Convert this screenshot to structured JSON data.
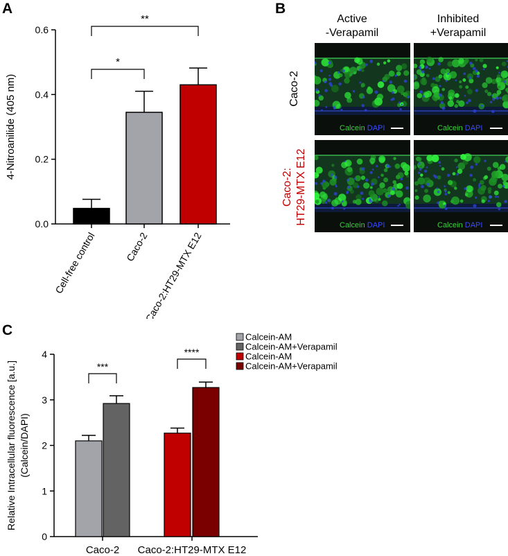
{
  "panels": {
    "a": "A",
    "b": "B",
    "c": "C"
  },
  "colors": {
    "black_bar": "#000000",
    "gray_bar": "#a3a3aa",
    "red_bar": "#c00000",
    "light_gray": "#a3a3aa",
    "dark_gray": "#636363",
    "red": "#c00000",
    "dark_red": "#7a0000",
    "calcein_green": "#39d339",
    "dapi_blue": "#3a4cff"
  },
  "micro": {
    "col_titles": [
      {
        "line1": "Active",
        "line2": "-Verapamil"
      },
      {
        "line1": "Inhibited",
        "line2": "+Verapamil"
      }
    ],
    "row_titles": [
      {
        "line1": "Caco-2",
        "line2": "",
        "color": "#000000"
      },
      {
        "line1": "Caco-2:",
        "line2": "HT29-MTX E12",
        "color": "#c00000"
      }
    ],
    "label_calcein": "Calcein",
    "label_dapi": "DAPI"
  },
  "chart_data": [
    {
      "type": "bar",
      "panel": "A",
      "categories": [
        "Cell-free control",
        "Caco-2",
        "Caco-2:HT29-MTX E12"
      ],
      "values": [
        0.048,
        0.345,
        0.43
      ],
      "errors": [
        0.028,
        0.065,
        0.052
      ],
      "colors": [
        "#000000",
        "#a3a3aa",
        "#c00000"
      ],
      "ylabel": "4-Nitroanilide (405 nm)",
      "ylim": [
        0,
        0.6
      ],
      "yticks": [
        "0.0",
        "0.2",
        "0.4",
        "0.6"
      ],
      "significance": [
        {
          "from": 0,
          "to": 1,
          "label": "*"
        },
        {
          "from": 0,
          "to": 2,
          "label": "**"
        }
      ],
      "grid": false
    },
    {
      "type": "bar",
      "panel": "C",
      "categories": [
        "Caco-2",
        "Caco-2:HT29-MTX E12"
      ],
      "series": [
        {
          "name": "Calcein-AM",
          "group": 0,
          "value": 2.1,
          "error": 0.12,
          "color": "#a3a3aa"
        },
        {
          "name": "Calcein-AM+Verapamil",
          "group": 0,
          "value": 2.92,
          "error": 0.17,
          "color": "#636363"
        },
        {
          "name": "Calcein-AM",
          "group": 1,
          "value": 2.27,
          "error": 0.11,
          "color": "#c00000"
        },
        {
          "name": "Calcein-AM+Verapamil",
          "group": 1,
          "value": 3.27,
          "error": 0.12,
          "color": "#7a0000"
        }
      ],
      "ylabel_line1": "Relative Intracellular fluorescence [a.u.]",
      "ylabel_line2": "(Calcein/DAPI)",
      "ylim": [
        0,
        4
      ],
      "yticks": [
        "0",
        "1",
        "2",
        "3",
        "4"
      ],
      "significance": [
        {
          "group": 0,
          "label": "***"
        },
        {
          "group": 1,
          "label": "****"
        }
      ],
      "legend_position": "top-right",
      "grid": false
    }
  ]
}
